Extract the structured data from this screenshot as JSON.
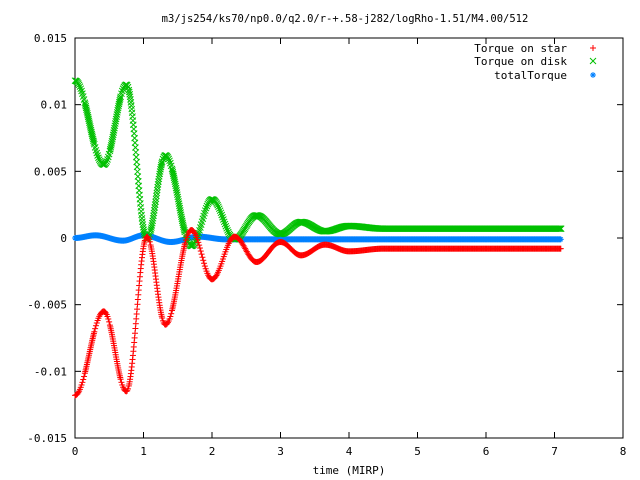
{
  "chart_data": {
    "type": "scatter",
    "title": "m3/js254/ks70/np0.0/q2.0/r-+.58-j282/logRho-1.51/M4.00/512",
    "xlabel": "time (MIRP)",
    "ylabel": "",
    "xlim": [
      0,
      8
    ],
    "ylim": [
      -0.015,
      0.015
    ],
    "x_ticks": [
      "0",
      "1",
      "2",
      "3",
      "4",
      "5",
      "6",
      "7",
      "8"
    ],
    "y_ticks": [
      "-0.015",
      "-0.01",
      "-0.005",
      "0",
      "0.005",
      "0.01",
      "0.015"
    ],
    "grid": false,
    "legend_position": "top-right",
    "time_range": [
      0,
      7.1
    ],
    "series": [
      {
        "name": "Torque on star",
        "marker": "+",
        "color": "#ff0000",
        "peaks": [
          {
            "t": 0.0,
            "v": -0.0118
          },
          {
            "t": 0.42,
            "v": -0.0055
          },
          {
            "t": 0.75,
            "v": -0.0115
          },
          {
            "t": 1.05,
            "v": 0.0001
          },
          {
            "t": 1.32,
            "v": -0.0065
          },
          {
            "t": 1.7,
            "v": 0.0006
          },
          {
            "t": 2.0,
            "v": -0.0031
          },
          {
            "t": 2.33,
            "v": 0.0001
          },
          {
            "t": 2.65,
            "v": -0.0018
          },
          {
            "t": 3.0,
            "v": -0.0003
          },
          {
            "t": 3.3,
            "v": -0.0013
          },
          {
            "t": 3.65,
            "v": -0.0005
          },
          {
            "t": 4.0,
            "v": -0.001
          },
          {
            "t": 4.5,
            "v": -0.0008
          },
          {
            "t": 7.1,
            "v": -0.0008
          }
        ]
      },
      {
        "name": "Torque on disk",
        "marker": "x",
        "color": "#00c000",
        "peaks": [
          {
            "t": 0.0,
            "v": 0.0118
          },
          {
            "t": 0.42,
            "v": 0.0055
          },
          {
            "t": 0.75,
            "v": 0.0115
          },
          {
            "t": 1.05,
            "v": -0.0001
          },
          {
            "t": 1.32,
            "v": 0.0062
          },
          {
            "t": 1.7,
            "v": -0.0006
          },
          {
            "t": 2.0,
            "v": 0.0029
          },
          {
            "t": 2.33,
            "v": -0.0001
          },
          {
            "t": 2.65,
            "v": 0.0017
          },
          {
            "t": 3.0,
            "v": 0.0003
          },
          {
            "t": 3.3,
            "v": 0.0012
          },
          {
            "t": 3.65,
            "v": 0.0005
          },
          {
            "t": 4.0,
            "v": 0.0009
          },
          {
            "t": 4.5,
            "v": 0.0007
          },
          {
            "t": 7.1,
            "v": 0.0007
          }
        ]
      },
      {
        "name": "totalTorque",
        "marker": "*",
        "color": "#0080ff",
        "peaks": [
          {
            "t": 0.0,
            "v": 0.0
          },
          {
            "t": 0.3,
            "v": 0.0002
          },
          {
            "t": 0.7,
            "v": -0.0002
          },
          {
            "t": 1.0,
            "v": 0.0002
          },
          {
            "t": 1.4,
            "v": -0.0003
          },
          {
            "t": 1.8,
            "v": 0.0001
          },
          {
            "t": 2.2,
            "v": -0.0001
          },
          {
            "t": 3.0,
            "v": -0.0001
          },
          {
            "t": 7.1,
            "v": -0.0001
          }
        ]
      }
    ]
  }
}
